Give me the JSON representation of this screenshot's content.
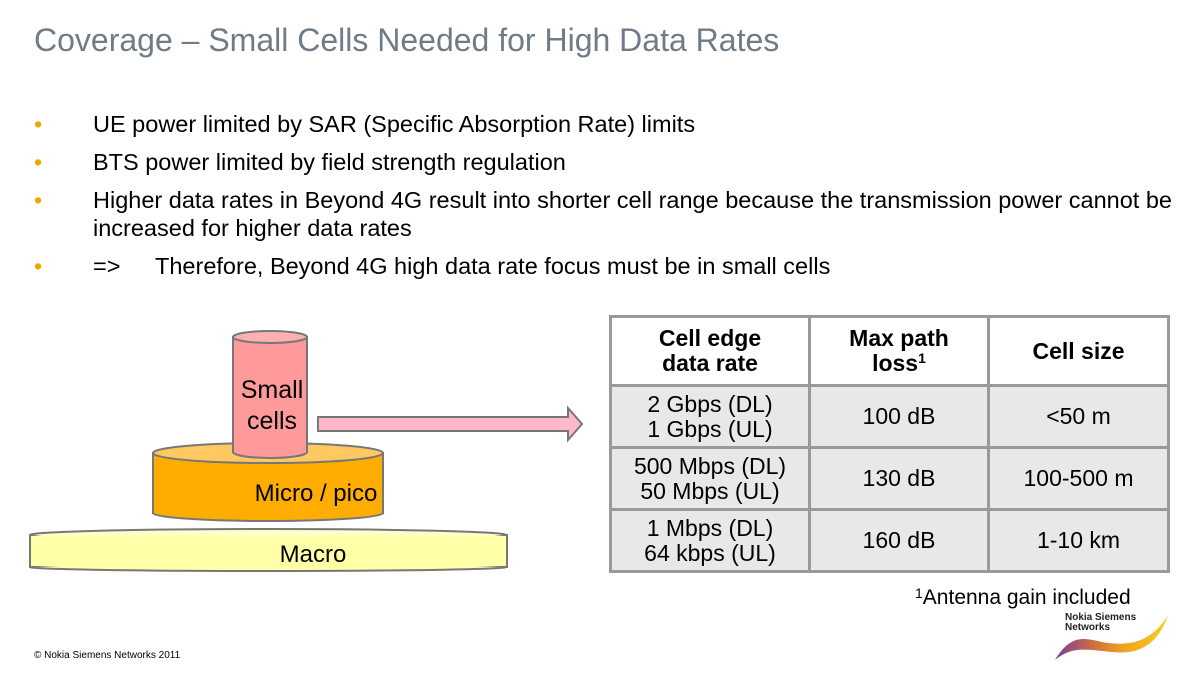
{
  "title": "Coverage – Small Cells Needed for High Data Rates",
  "bullets": [
    {
      "text": "UE power limited by SAR (Specific Absorption Rate) limits"
    },
    {
      "text": "BTS power limited by field strength regulation"
    },
    {
      "text": "Higher data rates in Beyond 4G result into shorter cell range because the transmission power cannot be increased for higher data rates"
    },
    {
      "prefix": "=>",
      "text": "Therefore, Beyond 4G high data rate focus must be in small cells"
    }
  ],
  "diagram": {
    "small_cells_line1": "Small",
    "small_cells_line2": "cells",
    "micro": "Micro / pico",
    "macro": "Macro"
  },
  "table": {
    "headers": [
      {
        "line1": "Cell edge",
        "line2": "data rate"
      },
      {
        "line1": "Max path",
        "line2": "loss",
        "sup": "1"
      },
      {
        "line1": "Cell size"
      }
    ],
    "rows": [
      {
        "rate_dl": "2 Gbps (DL)",
        "rate_ul": "1 Gbps (UL)",
        "loss": "100 dB",
        "size": "<50 m"
      },
      {
        "rate_dl": "500 Mbps (DL)",
        "rate_ul": "50 Mbps (UL)",
        "loss": "130 dB",
        "size": "100-500 m"
      },
      {
        "rate_dl": "1 Mbps (DL)",
        "rate_ul": "64 kbps (UL)",
        "loss": "160 dB",
        "size": "1-10 km"
      }
    ]
  },
  "footnote": {
    "sup": "1",
    "text": "Antenna gain included"
  },
  "copyright": "© Nokia Siemens Networks 2011",
  "logo": {
    "line1": "Nokia Siemens",
    "line2": "Networks"
  },
  "colors": {
    "title": "#6f7b86",
    "bullet": "#f0a500",
    "small": "#ff9a9a",
    "micro": "#ffad00",
    "macro": "#ffffa8"
  }
}
